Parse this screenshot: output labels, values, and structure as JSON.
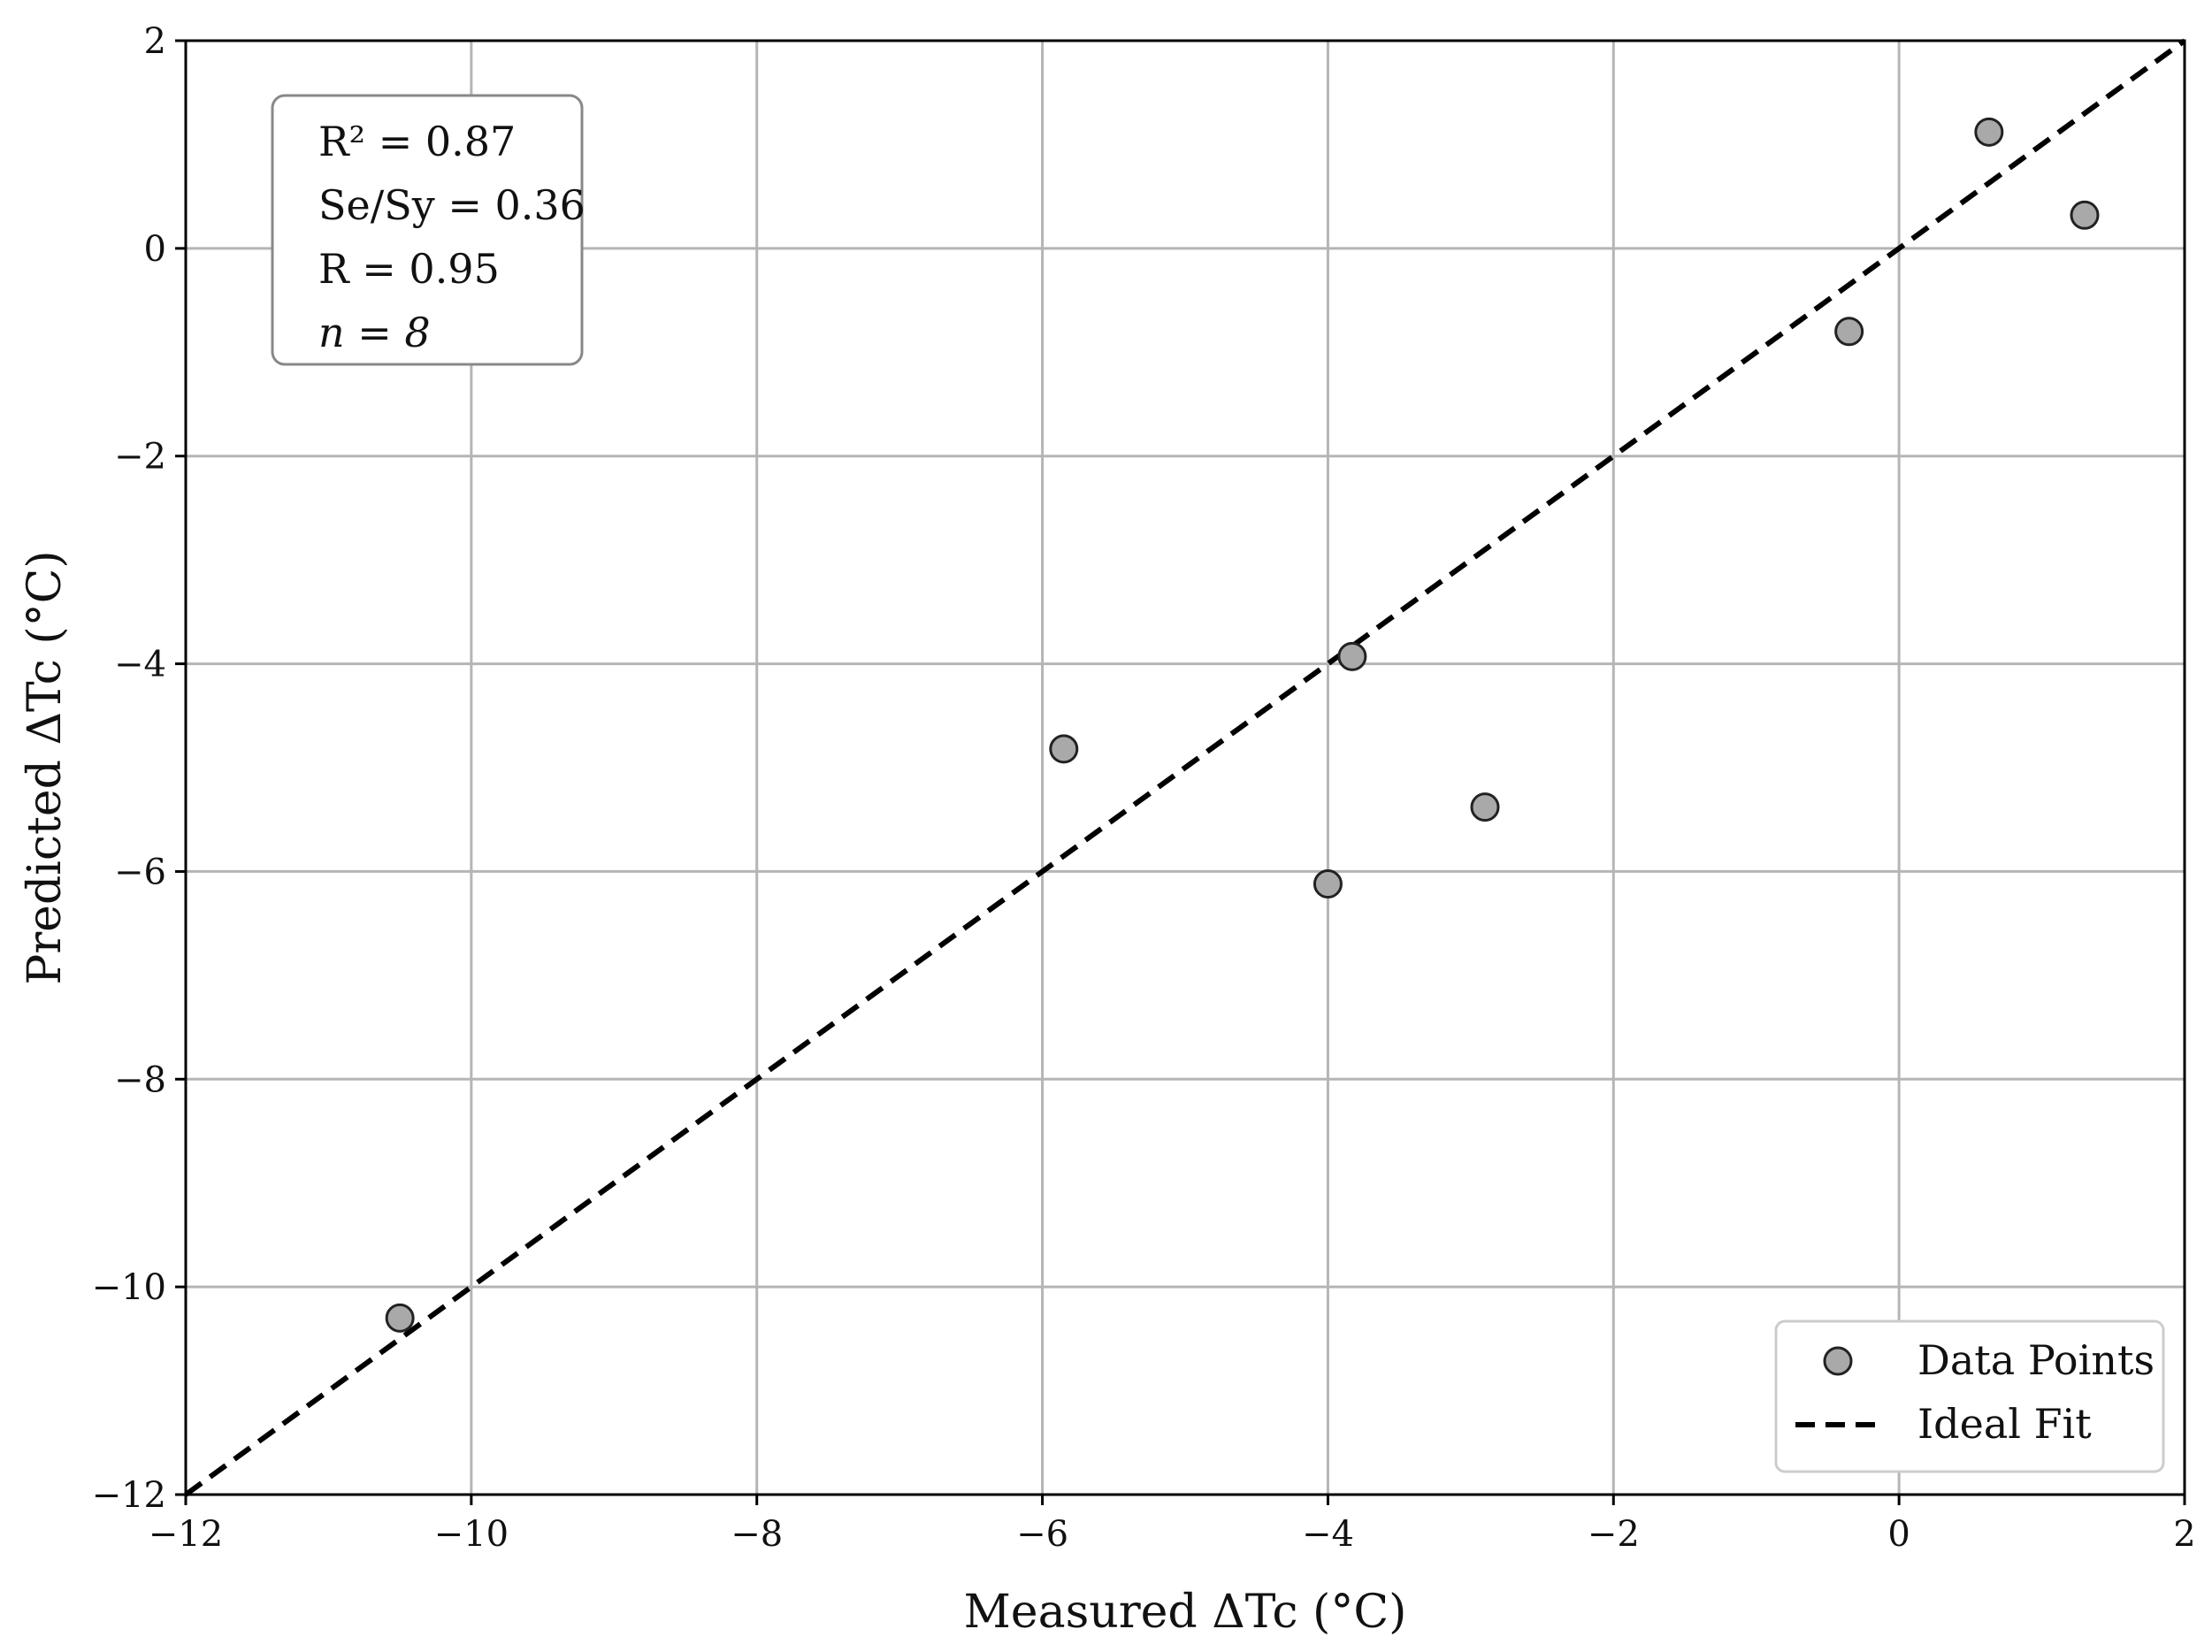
{
  "chart_data": {
    "type": "scatter",
    "xlabel": "Measured ΔTc (°C)",
    "ylabel": "Predicted ΔTc (°C)",
    "xlim": [
      -12,
      2
    ],
    "ylim": [
      -12,
      2
    ],
    "xticks": [
      -12,
      -10,
      -8,
      -6,
      -4,
      -2,
      0,
      2
    ],
    "yticks": [
      -12,
      -10,
      -8,
      -6,
      -4,
      -2,
      0,
      2
    ],
    "grid": true,
    "legend_position": "bottom-right",
    "series": [
      {
        "name": "Data Points",
        "kind": "scatter",
        "color": "#a9a9a9",
        "points": [
          {
            "x": -10.5,
            "y": -10.3
          },
          {
            "x": -5.85,
            "y": -4.82
          },
          {
            "x": -4.0,
            "y": -6.12
          },
          {
            "x": -3.83,
            "y": -3.93
          },
          {
            "x": -2.9,
            "y": -5.38
          },
          {
            "x": -0.35,
            "y": -0.8
          },
          {
            "x": 0.63,
            "y": 1.12
          },
          {
            "x": 1.3,
            "y": 0.32
          }
        ]
      },
      {
        "name": "Ideal Fit",
        "kind": "line",
        "style": "dashed",
        "color": "#000000",
        "points": [
          {
            "x": -12,
            "y": -12
          },
          {
            "x": 2,
            "y": 2
          }
        ]
      }
    ],
    "stats_box": {
      "position": "top-left",
      "r2": "R² = 0.87",
      "sesy": "Se/Sy = 0.36",
      "r": "R = 0.95",
      "n": "n = 8"
    }
  }
}
